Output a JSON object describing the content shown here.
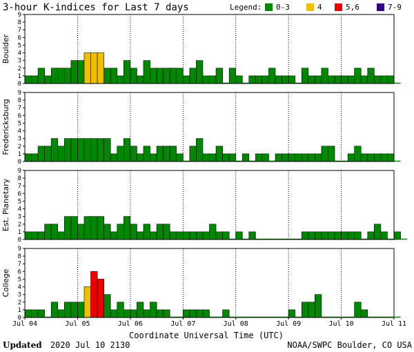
{
  "title": "3-hour K-indices for Last 7 days",
  "legend": {
    "label": "Legend:",
    "items": [
      {
        "label": "0-3",
        "color": "#008800"
      },
      {
        "label": "4",
        "color": "#f0c000"
      },
      {
        "label": "5,6",
        "color": "#ee0000"
      },
      {
        "label": "7-9",
        "color": "#330088"
      }
    ]
  },
  "footer": {
    "updated_label": "Updated",
    "updated_value": "2020 Jul 10 2130",
    "source": "NOAA/SWPC Boulder, CO USA"
  },
  "chart_data": {
    "type": "bar",
    "xlabel": "Coordinate Universal Time (UTC)",
    "x_ticks": [
      "Jul 04",
      "Jul 05",
      "Jul 06",
      "Jul 07",
      "Jul 08",
      "Jul 09",
      "Jul 10",
      "Jul 11"
    ],
    "y_ticks": [
      0,
      1,
      2,
      3,
      4,
      5,
      6,
      7,
      8,
      9
    ],
    "ylim": [
      0,
      9
    ],
    "intervals_per_day": 8,
    "panels": [
      {
        "name": "Boulder",
        "values": [
          1,
          1,
          2,
          1,
          2,
          2,
          2,
          3,
          3,
          4,
          4,
          4,
          2,
          2,
          1,
          3,
          2,
          1,
          3,
          2,
          2,
          2,
          2,
          2,
          1,
          2,
          3,
          1,
          1,
          2,
          0,
          2,
          1,
          0,
          1,
          1,
          1,
          2,
          1,
          1,
          1,
          0,
          2,
          1,
          1,
          2,
          1,
          1,
          1,
          1,
          2,
          1,
          2,
          1,
          1,
          1,
          0
        ]
      },
      {
        "name": "Fredericksburg",
        "values": [
          1,
          1,
          2,
          2,
          3,
          2,
          3,
          3,
          3,
          3,
          3,
          3,
          3,
          1,
          2,
          3,
          2,
          1,
          2,
          1,
          2,
          2,
          2,
          1,
          0,
          2,
          3,
          1,
          1,
          2,
          1,
          1,
          0,
          1,
          0,
          1,
          1,
          0,
          1,
          1,
          1,
          1,
          1,
          1,
          1,
          2,
          2,
          0,
          0,
          1,
          2,
          1,
          1,
          1,
          1,
          1,
          0
        ]
      },
      {
        "name": "Est. Planetary",
        "values": [
          1,
          1,
          1,
          2,
          2,
          1,
          3,
          3,
          2,
          3,
          3,
          3,
          2,
          1,
          2,
          3,
          2,
          1,
          2,
          1,
          2,
          2,
          1,
          1,
          1,
          1,
          1,
          1,
          2,
          1,
          1,
          0,
          1,
          0,
          1,
          0,
          0,
          0,
          0,
          0,
          0,
          0,
          1,
          1,
          1,
          1,
          1,
          1,
          1,
          1,
          1,
          0,
          1,
          2,
          1,
          0,
          1,
          0
        ]
      },
      {
        "name": "College",
        "values": [
          1,
          1,
          1,
          0,
          2,
          1,
          2,
          2,
          2,
          4,
          6,
          5,
          3,
          1,
          2,
          1,
          1,
          2,
          1,
          2,
          1,
          1,
          0,
          0,
          1,
          1,
          1,
          1,
          0,
          0,
          1,
          0,
          0,
          0,
          0,
          0,
          0,
          0,
          0,
          0,
          1,
          0,
          2,
          2,
          3,
          0,
          0,
          0,
          0,
          0,
          2,
          1,
          0,
          0,
          0,
          0,
          0
        ]
      }
    ]
  }
}
